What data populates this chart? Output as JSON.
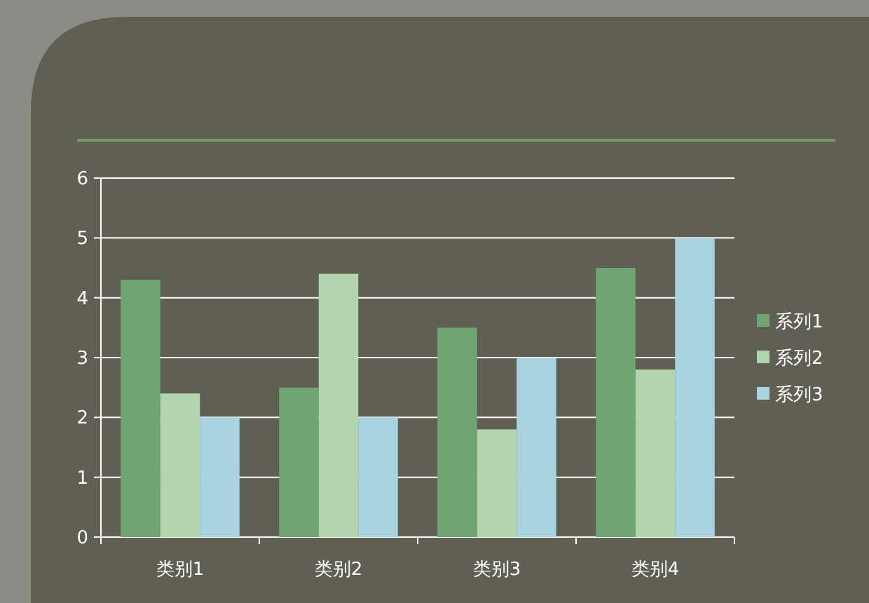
{
  "chart_data": {
    "type": "bar",
    "categories": [
      "类别1",
      "类别2",
      "类别3",
      "类别4"
    ],
    "series": [
      {
        "name": "系列1",
        "color": "#6fa572",
        "values": [
          4.3,
          2.5,
          3.5,
          4.5
        ]
      },
      {
        "name": "系列2",
        "color": "#b2d5ae",
        "values": [
          2.4,
          4.4,
          1.8,
          2.8
        ]
      },
      {
        "name": "系列3",
        "color": "#a9d3df",
        "values": [
          2,
          2,
          3,
          5
        ]
      }
    ],
    "ylim": [
      0,
      6
    ],
    "yticks": [
      0,
      1,
      2,
      3,
      4,
      5,
      6
    ],
    "grid": "y",
    "legend": "right"
  }
}
